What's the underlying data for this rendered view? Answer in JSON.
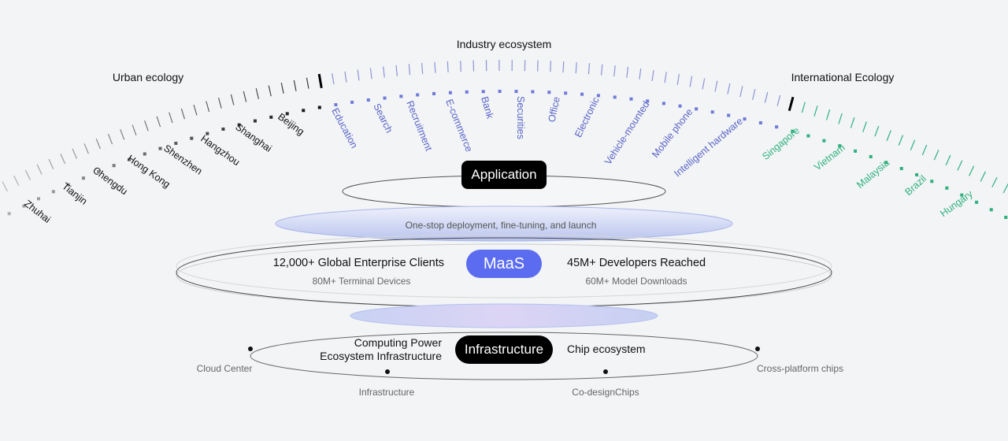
{
  "titles": {
    "industry": "Industry ecosystem",
    "urban": "Urban ecology",
    "international": "International Ecology"
  },
  "cities": [
    "Beijing",
    "Shanghai",
    "Hangzhou",
    "Shenzhen",
    "Hong Kong",
    "Chengdu",
    "Tianjin",
    "Zhuhai"
  ],
  "industries": [
    "Education",
    "Search",
    "Recruitment",
    "E-commerce",
    "Bank",
    "Securities",
    "Office",
    "Electronic",
    "Vehicle-mounted",
    "Mobile phone",
    "Intelligent hardware"
  ],
  "countries": [
    "Singapore",
    "Vietnam",
    "Malaysia",
    "Brazil",
    "Hungary"
  ],
  "application": {
    "label": "Application",
    "caption": "One-stop deployment, fine-tuning, and launch"
  },
  "maas": {
    "label": "MaaS",
    "left_stat": "12,000+ Global Enterprise Clients",
    "left_sub": "80M+ Terminal Devices",
    "right_stat": "45M+ Developers Reached",
    "right_sub": "60M+ Model Downloads"
  },
  "infrastructure": {
    "label": "Infrastructure",
    "left_line1": "Computing Power",
    "left_line2": "Ecosystem Infrastructure",
    "right": "Chip ecosystem",
    "nodes": [
      "Cloud Center",
      "Infrastructure",
      "Co-designChips",
      "Cross-platform chips"
    ]
  },
  "colors": {
    "urban": "#111111",
    "industry": "#5a64c8",
    "international": "#2fb07e",
    "maas": "#5b6cf0",
    "pill_dark": "#000000"
  }
}
